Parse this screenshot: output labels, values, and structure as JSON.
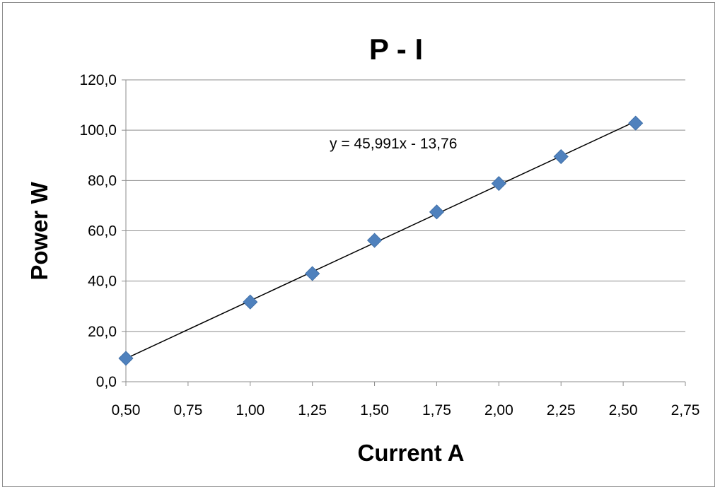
{
  "chart_data": {
    "type": "scatter",
    "title": "P - I",
    "xlabel": "Current A",
    "ylabel": "Power W",
    "xlim": [
      0.5,
      2.75
    ],
    "ylim": [
      0,
      120
    ],
    "x_ticks": [
      "0,50",
      "0,75",
      "1,00",
      "1,25",
      "1,50",
      "1,75",
      "2,00",
      "2,25",
      "2,50",
      "2,75"
    ],
    "y_ticks": [
      "0,0",
      "20,0",
      "40,0",
      "60,0",
      "80,0",
      "100,0",
      "120,0"
    ],
    "grid": "horizontal",
    "legend": "none",
    "marker_color": "#4f81bd",
    "trendline_color": "#000000",
    "series": [
      {
        "x": [
          0.5,
          1.0,
          1.25,
          1.5,
          1.75,
          2.0,
          2.25,
          2.55
        ],
        "y": [
          9.3,
          31.7,
          43.0,
          56.2,
          67.5,
          78.8,
          89.5,
          102.8
        ]
      }
    ],
    "trendline": {
      "type": "linear",
      "slope": 45.991,
      "intercept": -13.76,
      "x_range": [
        0.5,
        2.55
      ],
      "equation_label": "y = 45,991x - 13,76"
    }
  }
}
